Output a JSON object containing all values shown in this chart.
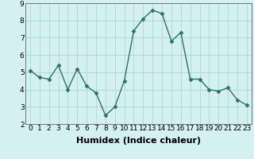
{
  "x": [
    0,
    1,
    2,
    3,
    4,
    5,
    6,
    7,
    8,
    9,
    10,
    11,
    12,
    13,
    14,
    15,
    16,
    17,
    18,
    19,
    20,
    21,
    22,
    23
  ],
  "y": [
    5.1,
    4.7,
    4.6,
    5.4,
    4.0,
    5.2,
    4.2,
    3.8,
    2.5,
    3.0,
    4.5,
    7.4,
    8.1,
    8.6,
    8.4,
    6.8,
    7.3,
    4.6,
    4.6,
    4.0,
    3.9,
    4.1,
    3.4,
    3.1
  ],
  "line_color": "#2e7070",
  "marker": "D",
  "marker_size": 2.5,
  "background_color": "#d4f0f0",
  "grid_color": "#aad8d8",
  "xlabel": "Humidex (Indice chaleur)",
  "xlabel_fontsize": 8,
  "xlim": [
    -0.5,
    23.5
  ],
  "ylim": [
    2,
    9
  ],
  "yticks": [
    2,
    3,
    4,
    5,
    6,
    7,
    8,
    9
  ],
  "xticks": [
    0,
    1,
    2,
    3,
    4,
    5,
    6,
    7,
    8,
    9,
    10,
    11,
    12,
    13,
    14,
    15,
    16,
    17,
    18,
    19,
    20,
    21,
    22,
    23
  ],
  "tick_fontsize": 6.5,
  "linewidth": 1.0
}
